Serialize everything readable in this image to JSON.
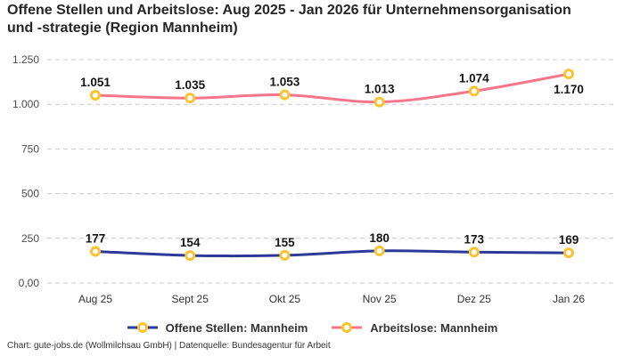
{
  "title": "Offene Stellen und Arbeitslose: Aug 2025 - Jan 2026 für Unternehmensorganisation und -strategie (Region Mannheim)",
  "footer": "Chart: gute-jobs.de (Wollmilchsau GmbH) | Datenquelle: Bundesagentur für Arbeit",
  "colors": {
    "open_positions_line": "#2b3a98",
    "unemployed_line": "#f8758b",
    "marker_ring": "#fcc331",
    "grid_line": "#c9c9c9",
    "data_label": "#141414",
    "axis_label": "#4d4d4d"
  },
  "chart_data": {
    "type": "line",
    "title": "Offene Stellen und Arbeitslose: Aug 2025 - Jan 2026 für Unternehmensorganisation und -strategie (Region Mannheim)",
    "xlabel": "",
    "ylabel": "",
    "categories": [
      "Aug 25",
      "Sept 25",
      "Okt 25",
      "Nov 25",
      "Dez 25",
      "Jan 26"
    ],
    "series": [
      {
        "name": "Offene Stellen: Mannheim",
        "color": "#2b3a98",
        "values": [
          177,
          154,
          155,
          180,
          173,
          169
        ],
        "value_labels": [
          "177",
          "154",
          "155",
          "180",
          "173",
          "169"
        ]
      },
      {
        "name": "Arbeitslose: Mannheim",
        "color": "#f8758b",
        "values": [
          1051,
          1035,
          1053,
          1013,
          1074,
          1170
        ],
        "value_labels": [
          "1.051",
          "1.035",
          "1.053",
          "1.013",
          "1.074",
          "1.170"
        ]
      }
    ],
    "ylim": [
      0,
      1250
    ],
    "yticks": [
      {
        "value": 1250,
        "label": "1.250"
      },
      {
        "value": 1000,
        "label": "1.000"
      },
      {
        "value": 750,
        "label": "750"
      },
      {
        "value": 500,
        "label": "500"
      },
      {
        "value": 250,
        "label": "250"
      },
      {
        "value": 0,
        "label": "0,00"
      }
    ],
    "grid": "horizontal-dashed",
    "legend_position": "bottom",
    "marker": {
      "fill": "#ffffff",
      "stroke": "#fcc331"
    }
  }
}
